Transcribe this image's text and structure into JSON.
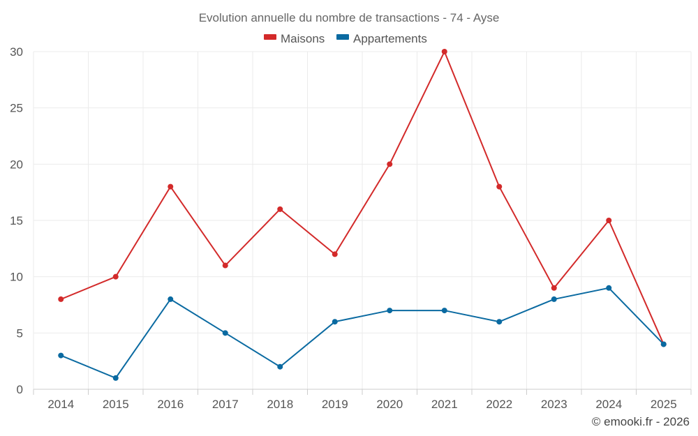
{
  "chart_data": {
    "type": "line",
    "title": "Evolution annuelle du nombre de transactions - 74 - Ayse",
    "categories": [
      "2014",
      "2015",
      "2016",
      "2017",
      "2018",
      "2019",
      "2020",
      "2021",
      "2022",
      "2023",
      "2024",
      "2025"
    ],
    "series": [
      {
        "name": "Maisons",
        "color": "#d32a2a",
        "values": [
          8,
          10,
          18,
          11,
          16,
          12,
          20,
          30,
          18,
          9,
          15,
          4
        ]
      },
      {
        "name": "Appartements",
        "color": "#0a6aa1",
        "values": [
          3,
          1,
          8,
          5,
          2,
          6,
          7,
          7,
          6,
          8,
          9,
          4
        ]
      }
    ],
    "ylim": [
      0,
      30
    ],
    "yticks": [
      0,
      5,
      10,
      15,
      20,
      25,
      30
    ],
    "xlabel": "",
    "ylabel": "",
    "legend_position": "top-center",
    "grid": true
  },
  "credit": "© emooki.fr - 2026"
}
